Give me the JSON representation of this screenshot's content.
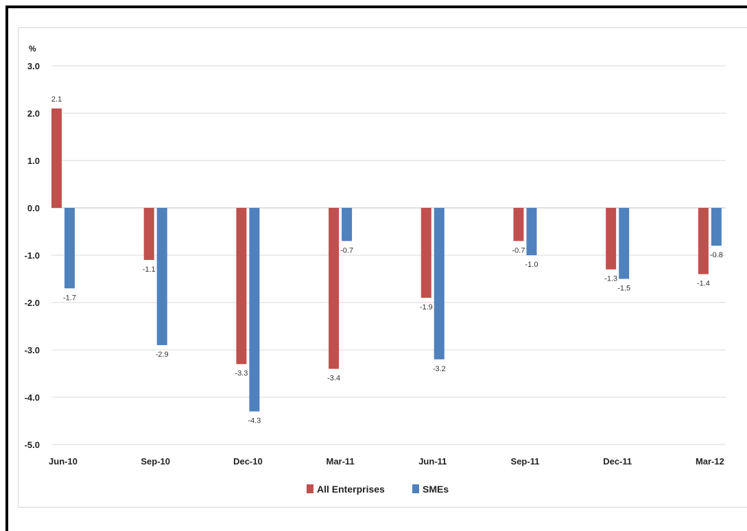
{
  "chart_data": {
    "type": "bar",
    "title": "",
    "xlabel": "",
    "ylabel": "%",
    "categories": [
      "Jun-10",
      "Sep-10",
      "Dec-10",
      "Mar-11",
      "Jun-11",
      "Sep-11",
      "Dec-11",
      "Mar-12"
    ],
    "series": [
      {
        "name": "All Enterprises",
        "color": "#c0504d",
        "values": [
          2.1,
          -1.1,
          -3.3,
          -3.4,
          -1.9,
          -0.7,
          -1.3,
          -1.4
        ]
      },
      {
        "name": "SMEs",
        "color": "#4f81bd",
        "values": [
          -1.7,
          -2.9,
          -4.3,
          -0.7,
          -3.2,
          -1.0,
          -1.5,
          -0.8
        ]
      }
    ],
    "ylim": [
      -5,
      3
    ],
    "yticks": [
      "3.0",
      "2.0",
      "1.0",
      "0.0",
      "-1.0",
      "-2.0",
      "-3.0",
      "-4.0",
      "-5.0"
    ],
    "grid": true,
    "legend": "bottom"
  }
}
